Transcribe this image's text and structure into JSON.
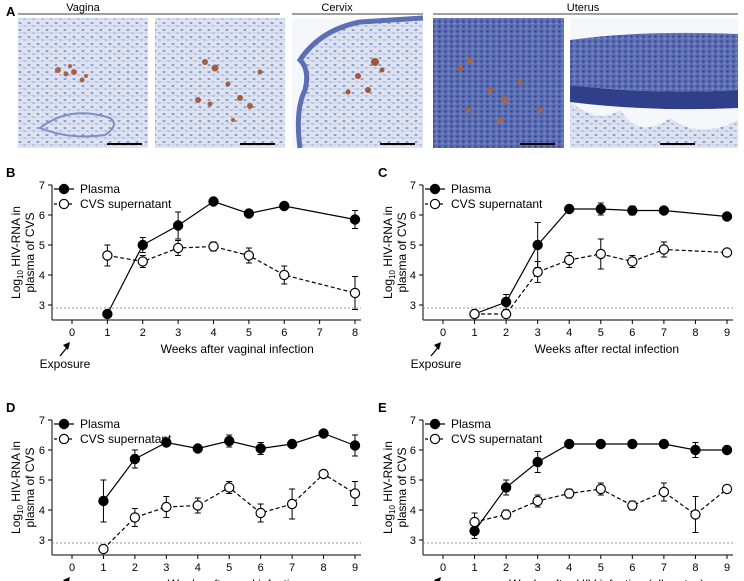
{
  "figure": {
    "panel_a": {
      "letter": "A",
      "tissues": [
        "Vagina",
        "Cervix",
        "Uterus"
      ]
    },
    "legend": {
      "plasma": "Plasma",
      "cvs": "CVS supernatant"
    },
    "ylabel_line1": "HIV-RNA in",
    "ylabel_line2": "plasma of CVS",
    "ylabel_prefix": "Log",
    "ylabel_sub": "10",
    "exposure_label": "Exposure"
  },
  "chart_data": [
    {
      "panel": "B",
      "type": "line",
      "title": "",
      "xlabel": "Weeks after vaginal infection",
      "ylabel": "Log10 HIV-RNA in plasma of CVS",
      "xlim": [
        0,
        8
      ],
      "ylim": [
        2.5,
        7
      ],
      "xticks": [
        "0",
        "1",
        "2",
        "3",
        "4",
        "5",
        "6",
        "7",
        "8"
      ],
      "yticks": [
        "3",
        "4",
        "5",
        "6",
        "7"
      ],
      "threshold": 2.9,
      "series": [
        {
          "name": "Plasma",
          "marker": "filled",
          "x": [
            1,
            2,
            3,
            4,
            5,
            6,
            8
          ],
          "y": [
            2.7,
            5.0,
            5.65,
            6.45,
            6.05,
            6.3,
            5.85
          ],
          "err": [
            0,
            0.25,
            0.45,
            0,
            0,
            0,
            0.3
          ]
        },
        {
          "name": "CVS supernatant",
          "marker": "open",
          "x": [
            1,
            2,
            3,
            4,
            5,
            6,
            8
          ],
          "y": [
            4.65,
            4.45,
            4.9,
            4.95,
            4.65,
            4.0,
            3.4
          ],
          "err": [
            0.35,
            0.2,
            0.25,
            0.15,
            0.25,
            0.3,
            0.55
          ]
        }
      ]
    },
    {
      "panel": "C",
      "type": "line",
      "title": "",
      "xlabel": "Weeks after rectal infection",
      "ylabel": "Log10 HIV-RNA in plasma of CVS",
      "xlim": [
        0,
        9
      ],
      "ylim": [
        2.5,
        7
      ],
      "xticks": [
        "0",
        "1",
        "2",
        "3",
        "4",
        "5",
        "6",
        "7",
        "8",
        "9"
      ],
      "yticks": [
        "3",
        "4",
        "5",
        "6",
        "7"
      ],
      "threshold": 2.9,
      "series": [
        {
          "name": "Plasma",
          "marker": "filled",
          "x": [
            1,
            2,
            3,
            4,
            5,
            6,
            7,
            9
          ],
          "y": [
            2.7,
            3.1,
            5.0,
            6.2,
            6.2,
            6.15,
            6.15,
            5.95
          ],
          "err": [
            0,
            0.25,
            0.75,
            0,
            0.2,
            0.15,
            0,
            0
          ]
        },
        {
          "name": "CVS supernatant",
          "marker": "open",
          "x": [
            1,
            2,
            3,
            4,
            5,
            6,
            7,
            9
          ],
          "y": [
            2.7,
            2.7,
            4.1,
            4.5,
            4.7,
            4.45,
            4.85,
            4.75
          ],
          "err": [
            0,
            0,
            0.35,
            0.25,
            0.5,
            0.2,
            0.25,
            0
          ]
        }
      ]
    },
    {
      "panel": "D",
      "type": "line",
      "title": "",
      "xlabel": "Weeks after oral infection",
      "ylabel": "Log10 HIV-RNA in plasma of CVS",
      "xlim": [
        0,
        9
      ],
      "ylim": [
        2.5,
        7
      ],
      "xticks": [
        "0",
        "1",
        "2",
        "3",
        "4",
        "5",
        "6",
        "7",
        "8",
        "9"
      ],
      "yticks": [
        "3",
        "4",
        "5",
        "6",
        "7"
      ],
      "threshold": 2.9,
      "series": [
        {
          "name": "Plasma",
          "marker": "filled",
          "x": [
            1,
            2,
            3,
            4,
            5,
            6,
            7,
            8,
            9
          ],
          "y": [
            4.3,
            5.7,
            6.25,
            6.05,
            6.3,
            6.05,
            6.2,
            6.55,
            6.15
          ],
          "err": [
            0.7,
            0.3,
            0,
            0,
            0.2,
            0.2,
            0,
            0,
            0.35
          ]
        },
        {
          "name": "CVS supernatant",
          "marker": "open",
          "x": [
            1,
            2,
            3,
            4,
            5,
            6,
            7,
            8,
            9
          ],
          "y": [
            2.7,
            3.75,
            4.1,
            4.15,
            4.75,
            3.9,
            4.2,
            5.2,
            4.55
          ],
          "err": [
            0,
            0.3,
            0.35,
            0.25,
            0.2,
            0.3,
            0.5,
            0,
            0.4
          ]
        }
      ]
    },
    {
      "panel": "E",
      "type": "line",
      "title": "",
      "xlabel": "Weeks after HIV infection (all routes)",
      "ylabel": "Log10 HIV-RNA in plasma of CVS",
      "xlim": [
        0,
        9
      ],
      "ylim": [
        2.5,
        7
      ],
      "xticks": [
        "0",
        "1",
        "2",
        "3",
        "4",
        "5",
        "6",
        "7",
        "8",
        "9"
      ],
      "yticks": [
        "3",
        "4",
        "5",
        "6",
        "7"
      ],
      "threshold": 2.9,
      "series": [
        {
          "name": "Plasma",
          "marker": "filled",
          "x": [
            1,
            2,
            3,
            4,
            5,
            6,
            7,
            8,
            9
          ],
          "y": [
            3.3,
            4.75,
            5.6,
            6.2,
            6.2,
            6.2,
            6.2,
            6.0,
            6.0
          ],
          "err": [
            0.25,
            0.25,
            0.35,
            0,
            0,
            0,
            0,
            0.25,
            0
          ]
        },
        {
          "name": "CVS supernatant",
          "marker": "open",
          "x": [
            1,
            2,
            3,
            4,
            5,
            6,
            7,
            8,
            9
          ],
          "y": [
            3.6,
            3.85,
            4.3,
            4.55,
            4.7,
            4.15,
            4.6,
            3.85,
            4.7
          ],
          "err": [
            0.3,
            0.15,
            0.2,
            0.15,
            0.2,
            0.15,
            0.3,
            0.6,
            0
          ]
        }
      ]
    }
  ]
}
